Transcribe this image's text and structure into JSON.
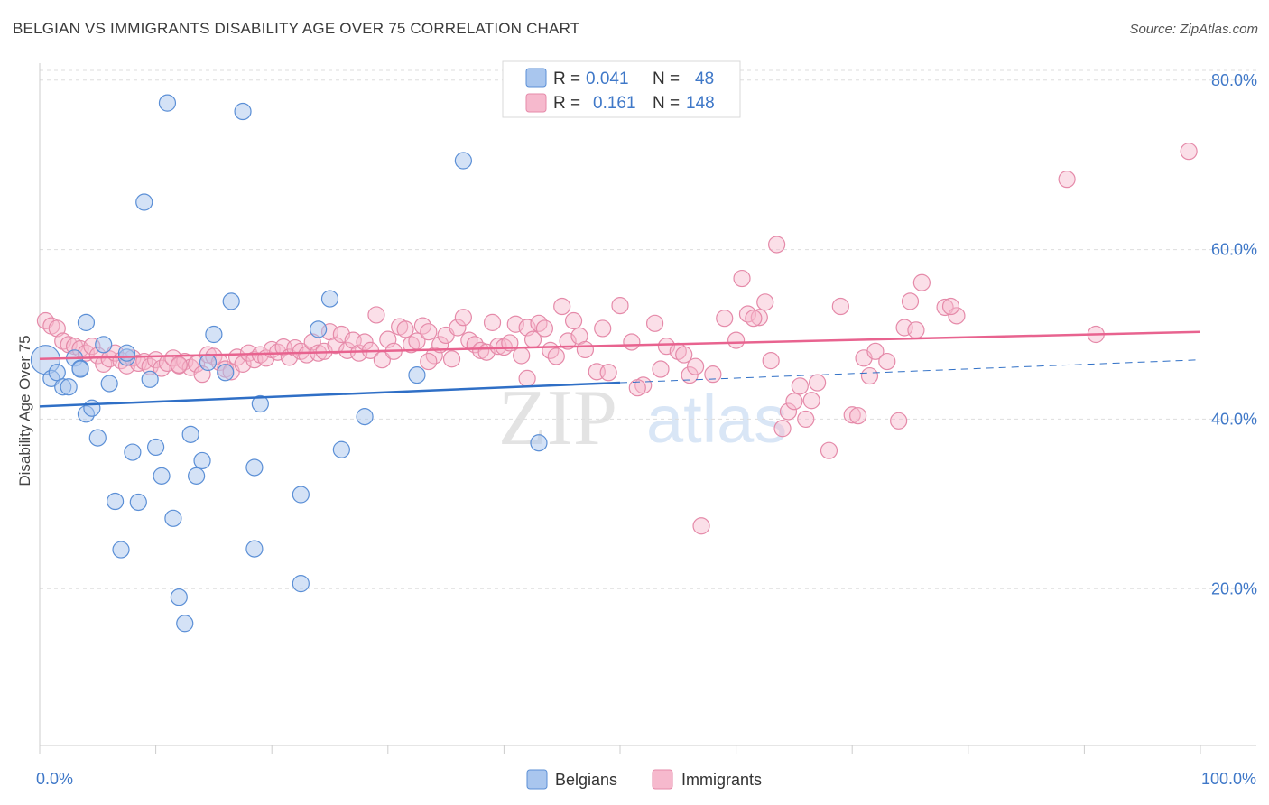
{
  "title": "BELGIAN VS IMMIGRANTS DISABILITY AGE OVER 75 CORRELATION CHART",
  "source": "Source: ZipAtlas.com",
  "watermark": {
    "zip": "ZIP",
    "atlas": "atlas"
  },
  "colors": {
    "belgians_fill": "#a9c6ee",
    "belgians_stroke": "#5b8fd6",
    "belgians_line": "#2f6fc6",
    "immigrants_fill": "#f6b9cd",
    "immigrants_stroke": "#e58aa9",
    "immigrants_line": "#e8638f",
    "grid": "#dddddd",
    "tick_label": "#3f78c8"
  },
  "legend": {
    "rows": [
      {
        "r_label": "R =",
        "r_value": "0.041",
        "n_label": "N =",
        "n_value": "48"
      },
      {
        "r_label": "R =",
        "r_value": "0.161",
        "n_label": "N =",
        "n_value": "148"
      }
    ]
  },
  "bottom_legend": {
    "belgians": "Belgians",
    "immigrants": "Immigrants"
  },
  "chart_data": {
    "type": "scatter",
    "title": "BELGIAN VS IMMIGRANTS DISABILITY AGE OVER 75 CORRELATION CHART",
    "xlabel": "",
    "ylabel": "Disability Age Over 75",
    "xlim": [
      0,
      100
    ],
    "ylim": [
      1.5,
      82
    ],
    "x_tick_labels": [
      {
        "value": 0,
        "label": "0.0%"
      },
      {
        "value": 100,
        "label": "100.0%"
      }
    ],
    "y_ticks": [
      {
        "value": 20,
        "label": "20.0%"
      },
      {
        "value": 40,
        "label": "40.0%"
      },
      {
        "value": 60,
        "label": "60.0%"
      },
      {
        "value": 80,
        "label": "80.0%"
      }
    ],
    "series": [
      {
        "name": "Belgians",
        "r": 0.041,
        "n": 48,
        "trend": {
          "x0": 0,
          "y0": 41.5,
          "x1": 50,
          "y1": 44.3,
          "dashed_to_x": 100,
          "dashed_to_y": 47.0
        },
        "points": [
          [
            0.5,
            47.0
          ],
          [
            1.0,
            44.8
          ],
          [
            1.5,
            45.5
          ],
          [
            2.0,
            43.8
          ],
          [
            2.5,
            43.8
          ],
          [
            3.0,
            47.2
          ],
          [
            3.5,
            46.0
          ],
          [
            3.5,
            45.9
          ],
          [
            4.0,
            51.4
          ],
          [
            4.0,
            40.6
          ],
          [
            4.5,
            41.3
          ],
          [
            5.0,
            37.8
          ],
          [
            5.5,
            48.8
          ],
          [
            6.0,
            44.2
          ],
          [
            6.5,
            30.3
          ],
          [
            7.0,
            24.6
          ],
          [
            7.5,
            47.3
          ],
          [
            8.0,
            36.1
          ],
          [
            8.5,
            30.2
          ],
          [
            9.0,
            65.6
          ],
          [
            9.5,
            44.7
          ],
          [
            10.0,
            36.7
          ],
          [
            10.5,
            33.3
          ],
          [
            11.0,
            77.3
          ],
          [
            11.5,
            28.3
          ],
          [
            12.0,
            19.0
          ],
          [
            12.5,
            15.9
          ],
          [
            13.0,
            38.2
          ],
          [
            13.5,
            33.3
          ],
          [
            14.0,
            35.1
          ],
          [
            14.5,
            46.7
          ],
          [
            15.0,
            50.0
          ],
          [
            16.0,
            45.5
          ],
          [
            16.5,
            53.9
          ],
          [
            17.5,
            76.3
          ],
          [
            18.5,
            34.3
          ],
          [
            18.5,
            24.7
          ],
          [
            19.0,
            41.8
          ],
          [
            22.5,
            31.1
          ],
          [
            22.5,
            20.6
          ],
          [
            24.0,
            50.6
          ],
          [
            25.0,
            54.2
          ],
          [
            26.0,
            36.4
          ],
          [
            28.0,
            40.3
          ],
          [
            32.5,
            45.2
          ],
          [
            36.5,
            70.5
          ],
          [
            43.0,
            37.2
          ],
          [
            7.5,
            47.8
          ]
        ]
      },
      {
        "name": "Immigrants",
        "r": 0.161,
        "n": 148,
        "trend": {
          "x0": 0,
          "y0": 47.1,
          "x1": 100,
          "y1": 50.3
        },
        "points": [
          [
            0.5,
            51.6
          ],
          [
            1.0,
            51.0
          ],
          [
            1.5,
            50.7
          ],
          [
            2.0,
            49.2
          ],
          [
            2.5,
            48.8
          ],
          [
            3.0,
            48.6
          ],
          [
            3.5,
            48.3
          ],
          [
            4.0,
            47.8
          ],
          [
            4.5,
            48.6
          ],
          [
            5.0,
            47.5
          ],
          [
            5.5,
            46.5
          ],
          [
            6.0,
            47.1
          ],
          [
            6.5,
            47.8
          ],
          [
            7.0,
            46.9
          ],
          [
            7.5,
            46.3
          ],
          [
            8.0,
            47.2
          ],
          [
            8.5,
            46.6
          ],
          [
            9.0,
            46.8
          ],
          [
            9.5,
            46.2
          ],
          [
            10.0,
            47.0
          ],
          [
            10.5,
            46.0
          ],
          [
            11.0,
            46.6
          ],
          [
            11.5,
            47.2
          ],
          [
            12.0,
            46.3
          ],
          [
            12.5,
            46.8
          ],
          [
            13.0,
            46.1
          ],
          [
            13.5,
            46.5
          ],
          [
            14.0,
            45.3
          ],
          [
            14.5,
            47.6
          ],
          [
            15.0,
            47.4
          ],
          [
            15.5,
            46.7
          ],
          [
            16.0,
            45.9
          ],
          [
            16.5,
            45.6
          ],
          [
            17.0,
            47.3
          ],
          [
            17.5,
            46.5
          ],
          [
            18.0,
            47.8
          ],
          [
            18.5,
            47.0
          ],
          [
            19.0,
            47.6
          ],
          [
            19.5,
            47.2
          ],
          [
            20.0,
            48.2
          ],
          [
            20.5,
            47.9
          ],
          [
            21.0,
            48.5
          ],
          [
            21.5,
            47.3
          ],
          [
            22.0,
            48.4
          ],
          [
            22.5,
            48.0
          ],
          [
            23.0,
            47.6
          ],
          [
            23.5,
            49.1
          ],
          [
            24.0,
            47.8
          ],
          [
            24.5,
            48.0
          ],
          [
            25.0,
            50.3
          ],
          [
            25.5,
            48.7
          ],
          [
            26.0,
            50.0
          ],
          [
            26.5,
            48.1
          ],
          [
            27.0,
            49.3
          ],
          [
            27.5,
            47.8
          ],
          [
            28.0,
            49.1
          ],
          [
            28.5,
            48.1
          ],
          [
            29.0,
            52.3
          ],
          [
            29.5,
            47.0
          ],
          [
            30.0,
            49.4
          ],
          [
            30.5,
            48.0
          ],
          [
            31.0,
            50.9
          ],
          [
            31.5,
            50.6
          ],
          [
            32.0,
            48.8
          ],
          [
            32.5,
            49.2
          ],
          [
            33.0,
            51.0
          ],
          [
            33.5,
            50.3
          ],
          [
            34.0,
            47.5
          ],
          [
            34.5,
            48.8
          ],
          [
            35.0,
            49.9
          ],
          [
            35.5,
            47.1
          ],
          [
            36.0,
            50.8
          ],
          [
            36.5,
            52.0
          ],
          [
            37.0,
            49.3
          ],
          [
            37.5,
            48.8
          ],
          [
            38.0,
            48.1
          ],
          [
            38.5,
            47.9
          ],
          [
            39.0,
            51.4
          ],
          [
            39.5,
            48.6
          ],
          [
            40.0,
            48.5
          ],
          [
            40.5,
            49.0
          ],
          [
            41.0,
            51.2
          ],
          [
            41.5,
            47.5
          ],
          [
            42.0,
            50.8
          ],
          [
            42.5,
            49.4
          ],
          [
            43.0,
            51.3
          ],
          [
            43.5,
            50.7
          ],
          [
            44.0,
            48.1
          ],
          [
            44.5,
            47.4
          ],
          [
            45.0,
            53.3
          ],
          [
            45.5,
            49.2
          ],
          [
            46.0,
            51.6
          ],
          [
            46.5,
            49.8
          ],
          [
            47.0,
            48.2
          ],
          [
            48.0,
            45.6
          ],
          [
            48.5,
            50.7
          ],
          [
            49.0,
            45.5
          ],
          [
            50.0,
            53.4
          ],
          [
            51.0,
            49.1
          ],
          [
            52.0,
            44.0
          ],
          [
            53.0,
            51.3
          ],
          [
            54.0,
            48.6
          ],
          [
            55.0,
            48.0
          ],
          [
            56.0,
            45.2
          ],
          [
            56.5,
            46.2
          ],
          [
            57.0,
            27.4
          ],
          [
            58.0,
            45.3
          ],
          [
            59.0,
            51.9
          ],
          [
            60.0,
            49.3
          ],
          [
            61.0,
            52.4
          ],
          [
            62.0,
            52.0
          ],
          [
            62.5,
            53.8
          ],
          [
            63.0,
            46.9
          ],
          [
            63.5,
            60.6
          ],
          [
            64.0,
            38.9
          ],
          [
            64.5,
            40.9
          ],
          [
            65.0,
            42.1
          ],
          [
            65.5,
            43.9
          ],
          [
            66.0,
            40.0
          ],
          [
            67.0,
            44.3
          ],
          [
            68.0,
            36.3
          ],
          [
            69.0,
            53.3
          ],
          [
            70.0,
            40.5
          ],
          [
            71.0,
            47.2
          ],
          [
            71.5,
            45.1
          ],
          [
            72.0,
            48.0
          ],
          [
            73.0,
            46.8
          ],
          [
            74.0,
            39.8
          ],
          [
            74.5,
            50.8
          ],
          [
            75.0,
            53.9
          ],
          [
            76.0,
            56.1
          ],
          [
            78.0,
            53.2
          ],
          [
            79.0,
            52.2
          ],
          [
            42.0,
            44.8
          ],
          [
            51.5,
            43.7
          ],
          [
            53.5,
            45.9
          ],
          [
            55.5,
            47.6
          ],
          [
            61.5,
            51.9
          ],
          [
            66.5,
            42.2
          ],
          [
            70.5,
            40.4
          ],
          [
            75.5,
            50.5
          ],
          [
            78.5,
            53.3
          ],
          [
            88.5,
            68.3
          ],
          [
            91.0,
            50.0
          ],
          [
            99.0,
            71.6
          ],
          [
            60.5,
            56.6
          ],
          [
            33.5,
            46.8
          ],
          [
            12.0,
            46.4
          ]
        ]
      }
    ]
  }
}
